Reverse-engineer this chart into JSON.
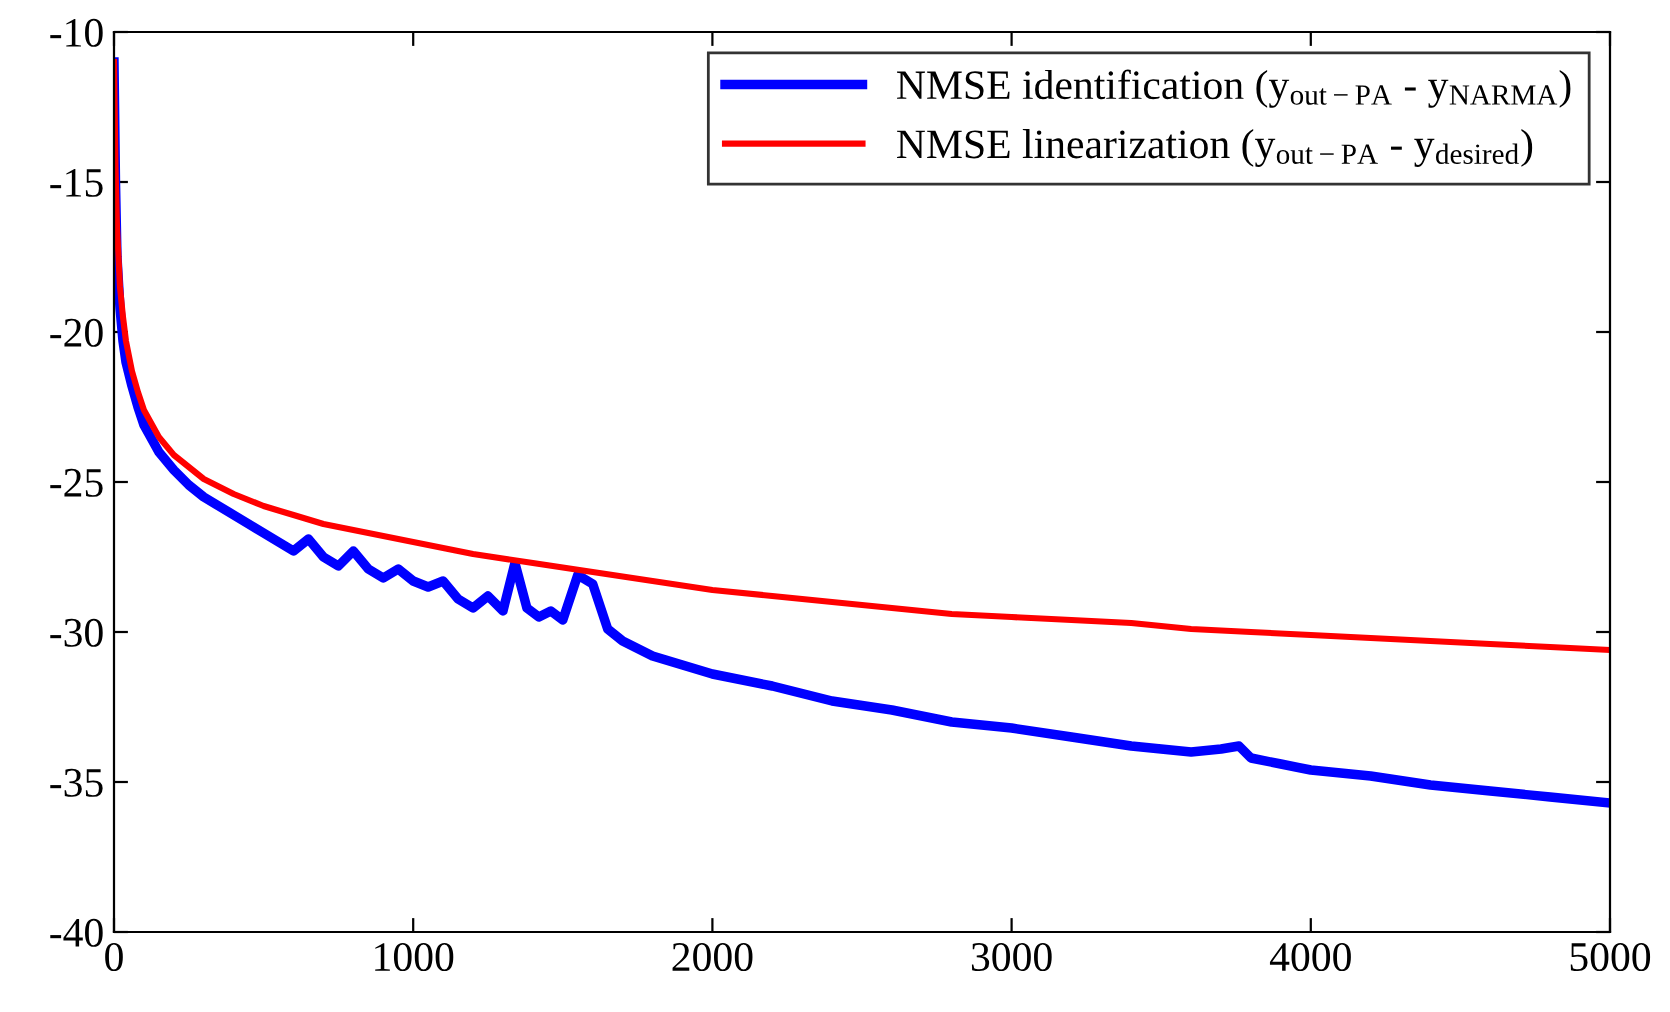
{
  "chart_data": {
    "type": "line",
    "xlim": [
      0,
      5000
    ],
    "ylim": [
      -40,
      -10
    ],
    "xticks": [
      0,
      1000,
      2000,
      3000,
      4000,
      5000
    ],
    "yticks": [
      -40,
      -35,
      -30,
      -25,
      -20,
      -15,
      -10
    ],
    "grid": false,
    "legend": "top right",
    "marker": "none",
    "line_style": "solid",
    "series": [
      {
        "name": "NMSE identification (y$_{out−PA}$ - y$_{NARMA}$)",
        "color": "#0000ff",
        "x": [
          0,
          5,
          10,
          20,
          30,
          40,
          60,
          80,
          100,
          150,
          200,
          250,
          300,
          350,
          400,
          450,
          500,
          550,
          600,
          650,
          700,
          750,
          800,
          850,
          900,
          950,
          1000,
          1050,
          1100,
          1150,
          1200,
          1250,
          1300,
          1340,
          1380,
          1420,
          1460,
          1500,
          1550,
          1600,
          1650,
          1700,
          1800,
          1900,
          2000,
          2200,
          2400,
          2600,
          2800,
          3000,
          3200,
          3400,
          3600,
          3700,
          3760,
          3800,
          3900,
          4000,
          4200,
          4400,
          4600,
          4800,
          5000
        ],
        "values": [
          -11,
          -15,
          -17.5,
          -19.2,
          -20.3,
          -21,
          -21.8,
          -22.5,
          -23.1,
          -24,
          -24.6,
          -25.1,
          -25.5,
          -25.8,
          -26.1,
          -26.4,
          -26.7,
          -27,
          -27.3,
          -26.9,
          -27.5,
          -27.8,
          -27.3,
          -27.9,
          -28.2,
          -27.9,
          -28.3,
          -28.5,
          -28.3,
          -28.9,
          -29.2,
          -28.8,
          -29.3,
          -27.7,
          -29.2,
          -29.5,
          -29.3,
          -29.6,
          -28.1,
          -28.4,
          -29.9,
          -30.3,
          -30.8,
          -31.1,
          -31.4,
          -31.8,
          -32.3,
          -32.6,
          -33,
          -33.2,
          -33.5,
          -33.8,
          -34,
          -33.9,
          -33.8,
          -34.2,
          -34.4,
          -34.6,
          -34.8,
          -35.1,
          -35.3,
          -35.5,
          -35.7
        ]
      },
      {
        "name": "NMSE linearization (y$_{out−PA}$ - y$_{desired}$)",
        "color": "#ff0000",
        "x": [
          0,
          5,
          10,
          20,
          30,
          40,
          60,
          80,
          100,
          150,
          200,
          300,
          400,
          500,
          600,
          700,
          800,
          900,
          1000,
          1200,
          1400,
          1600,
          1800,
          2000,
          2200,
          2400,
          2600,
          2800,
          3000,
          3200,
          3400,
          3600,
          3800,
          4000,
          4200,
          4400,
          4600,
          4800,
          5000
        ],
        "values": [
          -11,
          -14.5,
          -16.5,
          -18.5,
          -19.5,
          -20.3,
          -21.3,
          -22,
          -22.6,
          -23.5,
          -24.1,
          -24.9,
          -25.4,
          -25.8,
          -26.1,
          -26.4,
          -26.6,
          -26.8,
          -27,
          -27.4,
          -27.7,
          -28,
          -28.3,
          -28.6,
          -28.8,
          -29,
          -29.2,
          -29.4,
          -29.5,
          -29.6,
          -29.7,
          -29.9,
          -30,
          -30.1,
          -30.2,
          -30.3,
          -30.4,
          -30.5,
          -30.6
        ]
      }
    ]
  }
}
